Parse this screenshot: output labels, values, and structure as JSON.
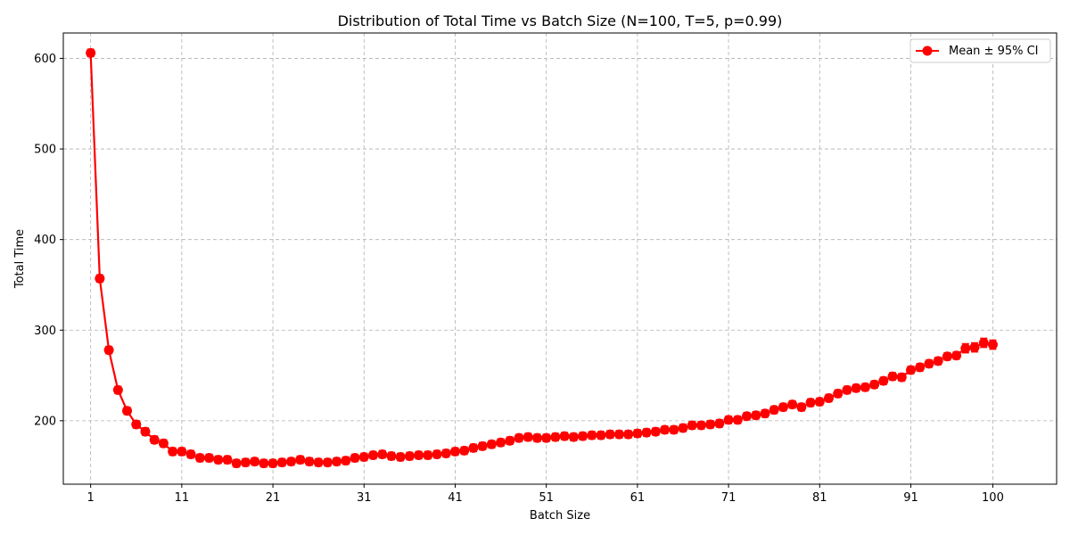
{
  "chart_data": {
    "type": "line",
    "title": "Distribution of Total Time vs Batch Size (N=100, T=5, p=0.99)",
    "xlabel": "Batch Size",
    "ylabel": "Total Time",
    "xlim": [
      -2,
      107
    ],
    "ylim": [
      130,
      628
    ],
    "xticks": [
      1,
      11,
      21,
      31,
      41,
      51,
      61,
      71,
      81,
      91,
      100
    ],
    "yticks": [
      200,
      300,
      400,
      500,
      600
    ],
    "grid": true,
    "legend_position": "top-right",
    "series": [
      {
        "name": "Mean ± 95% CI",
        "color": "#ff0000",
        "x": [
          1,
          2,
          3,
          4,
          5,
          6,
          7,
          8,
          9,
          10,
          11,
          12,
          13,
          14,
          15,
          16,
          17,
          18,
          19,
          20,
          21,
          22,
          23,
          24,
          25,
          26,
          27,
          28,
          29,
          30,
          31,
          32,
          33,
          34,
          35,
          36,
          37,
          38,
          39,
          40,
          41,
          42,
          43,
          44,
          45,
          46,
          47,
          48,
          49,
          50,
          51,
          52,
          53,
          54,
          55,
          56,
          57,
          58,
          59,
          60,
          61,
          62,
          63,
          64,
          65,
          66,
          67,
          68,
          69,
          70,
          71,
          72,
          73,
          74,
          75,
          76,
          77,
          78,
          79,
          80,
          81,
          82,
          83,
          84,
          85,
          86,
          87,
          88,
          89,
          90,
          91,
          92,
          93,
          94,
          95,
          96,
          97,
          98,
          99,
          100
        ],
        "y": [
          606,
          357,
          278,
          234,
          211,
          196,
          188,
          179,
          175,
          166,
          166,
          163,
          159,
          159,
          157,
          157,
          153,
          154,
          155,
          153,
          153,
          154,
          155,
          157,
          155,
          154,
          154,
          155,
          156,
          159,
          160,
          162,
          163,
          161,
          160,
          161,
          162,
          162,
          163,
          164,
          166,
          167,
          170,
          172,
          174,
          176,
          178,
          181,
          182,
          181,
          181,
          182,
          183,
          182,
          183,
          184,
          184,
          185,
          185,
          185,
          186,
          187,
          188,
          190,
          190,
          192,
          195,
          195,
          196,
          197,
          201,
          201,
          205,
          206,
          208,
          212,
          215,
          218,
          215,
          220,
          221,
          225,
          230,
          234,
          236,
          237,
          240,
          244,
          249,
          248,
          256,
          259,
          263,
          266,
          271,
          272,
          280,
          281,
          286,
          284
        ],
        "err": [
          4,
          4,
          4,
          4,
          4,
          4,
          4,
          4,
          4,
          4,
          4,
          4,
          4,
          4,
          4,
          4,
          4,
          4,
          4,
          4,
          4,
          4,
          4,
          4,
          4,
          4,
          4,
          4,
          4,
          4,
          4,
          4,
          4,
          4,
          4,
          4,
          4,
          4,
          4,
          4,
          4,
          4,
          4,
          4,
          4,
          4,
          4,
          4,
          4,
          4,
          4,
          4,
          4,
          4,
          4,
          4,
          4,
          4,
          4,
          4,
          4,
          4,
          4,
          4,
          4,
          4,
          4,
          4,
          4,
          4,
          4,
          4,
          4,
          4,
          4,
          4,
          4,
          4,
          4,
          4,
          4,
          4,
          4,
          4,
          4,
          4,
          4,
          4,
          4,
          4,
          4,
          4,
          4,
          4,
          4,
          4,
          5,
          5,
          5,
          5
        ]
      }
    ]
  }
}
